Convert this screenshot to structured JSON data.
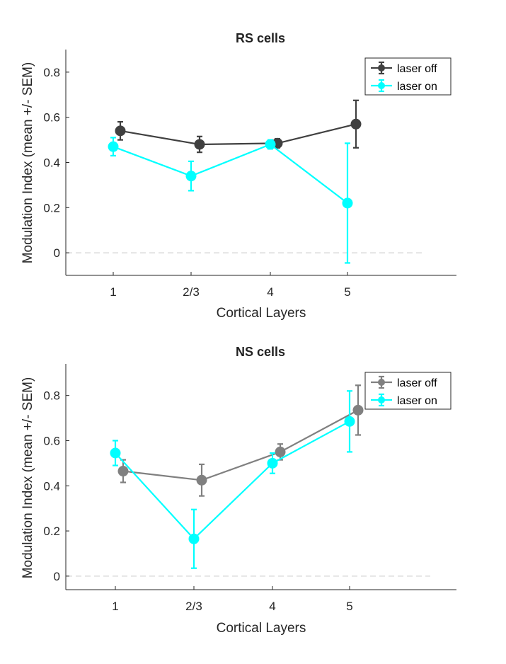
{
  "chart_data": [
    {
      "type": "line",
      "title": "RS cells",
      "xlabel": "Cortical Layers",
      "ylabel": "Modulation Index (mean +/- SEM)",
      "categories": [
        "1",
        "2/3",
        "4",
        "5"
      ],
      "ylim": [
        -0.1,
        0.9
      ],
      "yticks": [
        "0",
        "0.2",
        "0.4",
        "0.6",
        "0.8"
      ],
      "zero_line": true,
      "legend_position": "top-right",
      "series": [
        {
          "name": "laser off",
          "color": "#404040",
          "values": [
            0.54,
            0.48,
            0.485,
            0.57
          ],
          "sem": [
            0.04,
            0.035,
            0.02,
            0.105
          ]
        },
        {
          "name": "laser on",
          "color": "#00FFFF",
          "values": [
            0.47,
            0.34,
            0.48,
            0.22
          ],
          "sem": [
            0.04,
            0.065,
            0.02,
            0.265
          ]
        }
      ]
    },
    {
      "type": "line",
      "title": "NS cells",
      "xlabel": "Cortical Layers",
      "ylabel": "Modulation Index (mean +/- SEM)",
      "categories": [
        "1",
        "2/3",
        "4",
        "5"
      ],
      "ylim": [
        -0.06,
        0.94
      ],
      "yticks": [
        "0",
        "0.2",
        "0.4",
        "0.6",
        "0.8"
      ],
      "zero_line": true,
      "legend_position": "top-right",
      "series": [
        {
          "name": "laser off",
          "color": "#808080",
          "values": [
            0.465,
            0.425,
            0.55,
            0.735
          ],
          "sem": [
            0.05,
            0.07,
            0.035,
            0.11
          ]
        },
        {
          "name": "laser on",
          "color": "#00FFFF",
          "values": [
            0.545,
            0.165,
            0.5,
            0.685
          ],
          "sem": [
            0.055,
            0.13,
            0.045,
            0.135
          ]
        }
      ]
    }
  ]
}
